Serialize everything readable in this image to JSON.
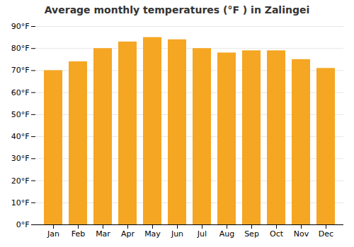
{
  "chart_data": {
    "type": "bar",
    "title": "Average monthly temperatures (°F ) in Zalingei",
    "categories": [
      "Jan",
      "Feb",
      "Mar",
      "Apr",
      "May",
      "Jun",
      "Jul",
      "Aug",
      "Sep",
      "Oct",
      "Nov",
      "Dec"
    ],
    "values": [
      70,
      74,
      80,
      83,
      85,
      84,
      80,
      78,
      79,
      79,
      75,
      71
    ],
    "color": "#F5A623",
    "ylim": [
      0,
      90
    ],
    "yticks": [
      {
        "value": 0,
        "label": "0°F"
      },
      {
        "value": 10,
        "label": "10°F"
      },
      {
        "value": 20,
        "label": "20°F"
      },
      {
        "value": 30,
        "label": "30°F"
      },
      {
        "value": 40,
        "label": "40°F"
      },
      {
        "value": 50,
        "label": "50°F"
      },
      {
        "value": 60,
        "label": "60°F"
      },
      {
        "value": 70,
        "label": "70°F"
      },
      {
        "value": 80,
        "label": "80°F"
      },
      {
        "value": 90,
        "label": "90°F"
      }
    ],
    "grid": true
  }
}
